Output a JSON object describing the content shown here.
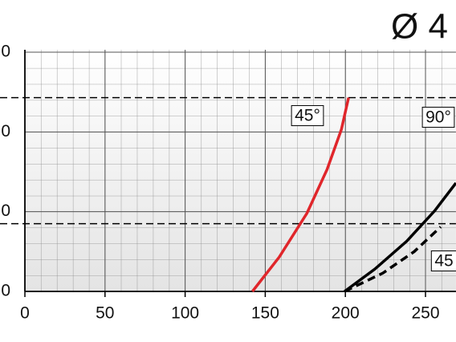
{
  "chart_data": {
    "type": "line",
    "title": "Ø 4",
    "xlim": [
      0,
      269
    ],
    "xticks": [
      0,
      50,
      100,
      150,
      200,
      250
    ],
    "ylim": [
      0,
      30
    ],
    "yticks": [
      {
        "value": 0,
        "label": "0"
      },
      {
        "value": 10,
        "label": "0"
      },
      {
        "value": 20,
        "label": "0"
      },
      {
        "value": 30,
        "label": "0"
      }
    ],
    "grid": true,
    "hlines": [
      24.3,
      8.5
    ],
    "series": [
      {
        "name": "45°",
        "color": "#e0262b",
        "dash": false,
        "x": [
          142,
          158.7,
          176,
          188.6,
          197.5,
          202
        ],
        "values": [
          0,
          4.3,
          9.8,
          15.3,
          20.3,
          24.3
        ]
      },
      {
        "name": "90°",
        "color": "#000000",
        "dash": false,
        "x": [
          199.5,
          218.4,
          238.3,
          255.7,
          269
        ],
        "values": [
          0,
          2.8,
          6.3,
          10.1,
          13.6
        ]
      },
      {
        "name": "45",
        "color": "#000000",
        "dash": true,
        "x": [
          199.5,
          223.4,
          243,
          259.5
        ],
        "values": [
          0,
          2.3,
          5,
          8.1
        ]
      }
    ]
  }
}
